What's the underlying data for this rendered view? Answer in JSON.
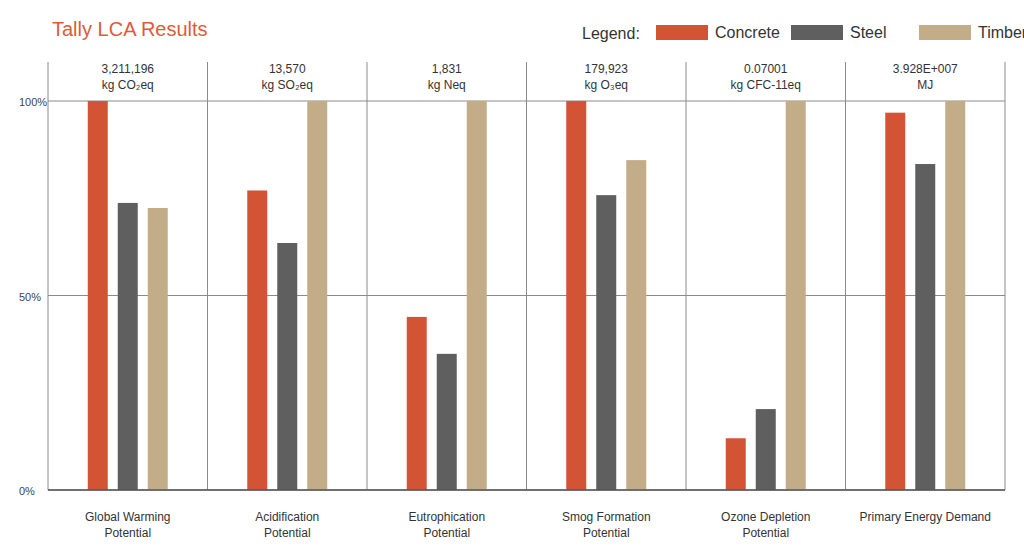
{
  "chart_data": {
    "type": "bar",
    "title": "Tally LCA Results",
    "legend_title": "Legend:",
    "legend": "top-right",
    "categories": [
      "Global Warming\nPotential",
      "Acidification\nPotential",
      "Eutrophication\nPotential",
      "Smog Formation\nPotential",
      "Ozone Depletion\nPotential",
      "Primary Energy Demand"
    ],
    "annotations": [
      {
        "text": "3,211,196",
        "unit": "kg CO₂eq"
      },
      {
        "text": "13,570",
        "unit": "kg SO₂eq"
      },
      {
        "text": "1,831",
        "unit": "kg Neq"
      },
      {
        "text": "179,923",
        "unit": "kg O₃eq"
      },
      {
        "text": "0.07001",
        "unit": "kg CFC-11eq"
      },
      {
        "text": "3.928E+007",
        "unit": "MJ"
      }
    ],
    "series": [
      {
        "name": "Concrete",
        "color": "#d35435",
        "values": [
          100,
          77,
          44.5,
          100,
          13.3,
          97
        ]
      },
      {
        "name": "Steel",
        "color": "#5f5f5f",
        "values": [
          73.8,
          63.5,
          35,
          75.8,
          20.8,
          83.8
        ]
      },
      {
        "name": "Timber",
        "color": "#c3ad88",
        "values": [
          72.5,
          100,
          100,
          84.8,
          100,
          100
        ]
      }
    ],
    "ylim": [
      0,
      100
    ],
    "yticks": [
      {
        "value": 0,
        "label": "0%"
      },
      {
        "value": 50,
        "label": "50%"
      },
      {
        "value": 100,
        "label": "100%"
      }
    ],
    "grid": true
  }
}
